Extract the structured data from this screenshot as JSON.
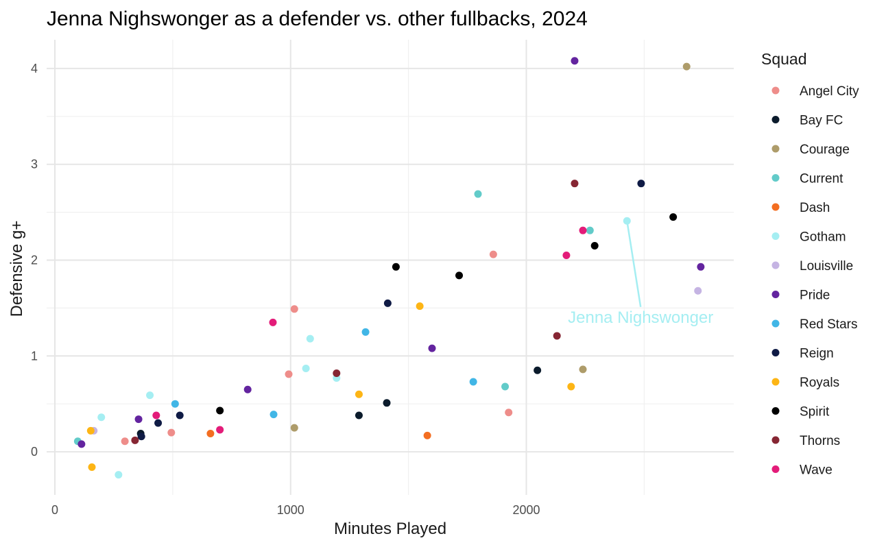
{
  "chart_data": {
    "type": "scatter",
    "title": "Jenna Nighswonger as a defender vs. other fullbacks, 2024",
    "xlabel": "Minutes Played",
    "ylabel": "Defensive g+",
    "xlim": [
      -35,
      2880
    ],
    "ylim": [
      -0.45,
      4.3
    ],
    "x_ticks": [
      0,
      1000,
      2000
    ],
    "y_ticks": [
      0,
      1,
      2,
      3,
      4
    ],
    "grid": true,
    "legend_title": "Squad",
    "legend_position": "right",
    "series": [
      {
        "name": "Angel City",
        "color": "#EE8D8A",
        "points": [
          [
            297,
            0.11
          ],
          [
            494,
            0.2
          ],
          [
            992,
            0.81
          ],
          [
            1016,
            1.49
          ],
          [
            1860,
            2.06
          ],
          [
            1925,
            0.41
          ]
        ]
      },
      {
        "name": "Bay FC",
        "color": "#0B1B2C",
        "points": [
          [
            364,
            0.19
          ],
          [
            1290,
            0.38
          ],
          [
            1408,
            0.51
          ],
          [
            2047,
            0.85
          ]
        ]
      },
      {
        "name": "Courage",
        "color": "#AE9C6A",
        "points": [
          [
            1016,
            0.25
          ],
          [
            2240,
            0.86
          ],
          [
            2680,
            4.02
          ]
        ]
      },
      {
        "name": "Current",
        "color": "#62CBC9",
        "points": [
          [
            97,
            0.11
          ],
          [
            1795,
            2.69
          ],
          [
            1910,
            0.68
          ],
          [
            2270,
            2.31
          ]
        ]
      },
      {
        "name": "Dash",
        "color": "#F36E21",
        "points": [
          [
            660,
            0.19
          ],
          [
            1580,
            0.17
          ]
        ]
      },
      {
        "name": "Gotham",
        "color": "#A5EEF2",
        "points": [
          [
            197,
            0.36
          ],
          [
            270,
            -0.24
          ],
          [
            403,
            0.59
          ],
          [
            1065,
            0.87
          ],
          [
            1083,
            1.18
          ],
          [
            1195,
            0.77
          ],
          [
            2427,
            2.41
          ]
        ]
      },
      {
        "name": "Louisville",
        "color": "#C5B4E3",
        "points": [
          [
            165,
            0.22
          ],
          [
            2728,
            1.68
          ]
        ]
      },
      {
        "name": "Pride",
        "color": "#63249F",
        "points": [
          [
            113,
            0.08
          ],
          [
            355,
            0.34
          ],
          [
            818,
            0.65
          ],
          [
            1600,
            1.08
          ],
          [
            2205,
            4.08
          ],
          [
            2740,
            1.93
          ]
        ]
      },
      {
        "name": "Red Stars",
        "color": "#41B6E6",
        "points": [
          [
            510,
            0.5
          ],
          [
            928,
            0.39
          ],
          [
            1318,
            1.25
          ],
          [
            1775,
            0.73
          ]
        ]
      },
      {
        "name": "Reign",
        "color": "#0F1B45",
        "points": [
          [
            367,
            0.16
          ],
          [
            438,
            0.3
          ],
          [
            530,
            0.38
          ],
          [
            1412,
            1.55
          ],
          [
            2487,
            2.8
          ]
        ]
      },
      {
        "name": "Royals",
        "color": "#FDB515",
        "points": [
          [
            152,
            0.22
          ],
          [
            157,
            -0.16
          ],
          [
            1290,
            0.6
          ],
          [
            1548,
            1.52
          ],
          [
            2190,
            0.68
          ]
        ]
      },
      {
        "name": "Spirit",
        "color": "#000000",
        "points": [
          [
            700,
            0.43
          ],
          [
            1447,
            1.93
          ],
          [
            1715,
            1.84
          ],
          [
            2290,
            2.15
          ],
          [
            2623,
            2.45
          ]
        ]
      },
      {
        "name": "Thorns",
        "color": "#862633",
        "points": [
          [
            340,
            0.12
          ],
          [
            1195,
            0.82
          ],
          [
            2130,
            1.21
          ],
          [
            2205,
            2.8
          ]
        ]
      },
      {
        "name": "Wave",
        "color": "#E31C79",
        "points": [
          [
            430,
            0.38
          ],
          [
            700,
            0.23
          ],
          [
            925,
            1.35
          ],
          [
            2170,
            2.05
          ],
          [
            2240,
            2.31
          ]
        ]
      }
    ],
    "annotation": {
      "text": "Jenna Nighswonger",
      "color": "#A5EEF2",
      "target": [
        2427,
        2.41
      ],
      "text_anchor": [
        2485,
        1.49
      ]
    }
  }
}
